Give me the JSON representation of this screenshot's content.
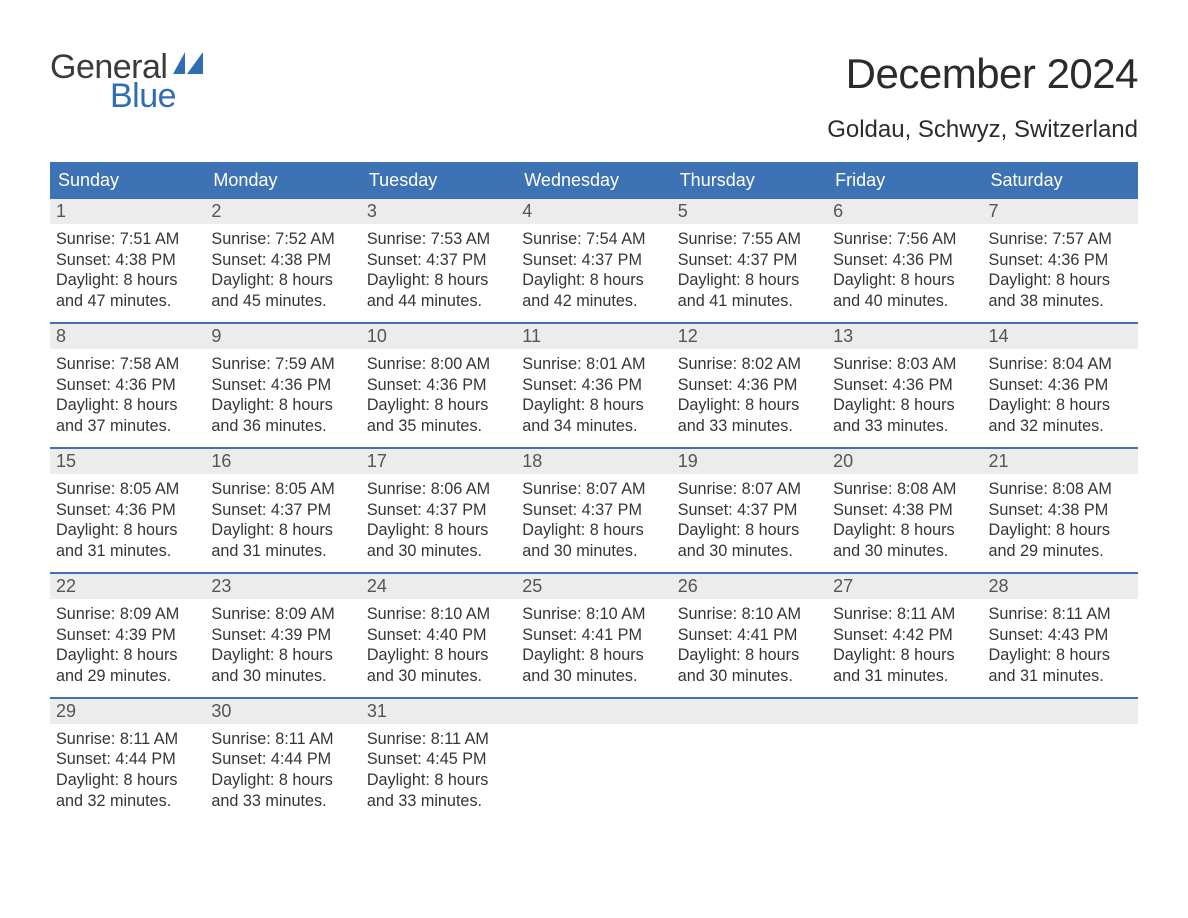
{
  "colors": {
    "header_bg": "#3d72b4",
    "header_text": "#ffffff",
    "row_border": "#3d72b4",
    "daynum_bg": "#ececec",
    "daynum_text": "#555555",
    "body_text": "#353535",
    "page_bg": "#ffffff",
    "logo_dark": "#3b3b3b",
    "logo_blue": "#2f6eb1"
  },
  "logo": {
    "word1": "General",
    "word2": "Blue"
  },
  "title": "December 2024",
  "location": "Goldau, Schwyz, Switzerland",
  "weekdays": [
    "Sunday",
    "Monday",
    "Tuesday",
    "Wednesday",
    "Thursday",
    "Friday",
    "Saturday"
  ],
  "labels": {
    "sunrise": "Sunrise:",
    "sunset": "Sunset:",
    "daylight": "Daylight:"
  },
  "weeks": [
    [
      {
        "n": "1",
        "sunrise": "7:51 AM",
        "sunset": "4:38 PM",
        "day_h": "8",
        "day_m": "47"
      },
      {
        "n": "2",
        "sunrise": "7:52 AM",
        "sunset": "4:38 PM",
        "day_h": "8",
        "day_m": "45"
      },
      {
        "n": "3",
        "sunrise": "7:53 AM",
        "sunset": "4:37 PM",
        "day_h": "8",
        "day_m": "44"
      },
      {
        "n": "4",
        "sunrise": "7:54 AM",
        "sunset": "4:37 PM",
        "day_h": "8",
        "day_m": "42"
      },
      {
        "n": "5",
        "sunrise": "7:55 AM",
        "sunset": "4:37 PM",
        "day_h": "8",
        "day_m": "41"
      },
      {
        "n": "6",
        "sunrise": "7:56 AM",
        "sunset": "4:36 PM",
        "day_h": "8",
        "day_m": "40"
      },
      {
        "n": "7",
        "sunrise": "7:57 AM",
        "sunset": "4:36 PM",
        "day_h": "8",
        "day_m": "38"
      }
    ],
    [
      {
        "n": "8",
        "sunrise": "7:58 AM",
        "sunset": "4:36 PM",
        "day_h": "8",
        "day_m": "37"
      },
      {
        "n": "9",
        "sunrise": "7:59 AM",
        "sunset": "4:36 PM",
        "day_h": "8",
        "day_m": "36"
      },
      {
        "n": "10",
        "sunrise": "8:00 AM",
        "sunset": "4:36 PM",
        "day_h": "8",
        "day_m": "35"
      },
      {
        "n": "11",
        "sunrise": "8:01 AM",
        "sunset": "4:36 PM",
        "day_h": "8",
        "day_m": "34"
      },
      {
        "n": "12",
        "sunrise": "8:02 AM",
        "sunset": "4:36 PM",
        "day_h": "8",
        "day_m": "33"
      },
      {
        "n": "13",
        "sunrise": "8:03 AM",
        "sunset": "4:36 PM",
        "day_h": "8",
        "day_m": "33"
      },
      {
        "n": "14",
        "sunrise": "8:04 AM",
        "sunset": "4:36 PM",
        "day_h": "8",
        "day_m": "32"
      }
    ],
    [
      {
        "n": "15",
        "sunrise": "8:05 AM",
        "sunset": "4:36 PM",
        "day_h": "8",
        "day_m": "31"
      },
      {
        "n": "16",
        "sunrise": "8:05 AM",
        "sunset": "4:37 PM",
        "day_h": "8",
        "day_m": "31"
      },
      {
        "n": "17",
        "sunrise": "8:06 AM",
        "sunset": "4:37 PM",
        "day_h": "8",
        "day_m": "30"
      },
      {
        "n": "18",
        "sunrise": "8:07 AM",
        "sunset": "4:37 PM",
        "day_h": "8",
        "day_m": "30"
      },
      {
        "n": "19",
        "sunrise": "8:07 AM",
        "sunset": "4:37 PM",
        "day_h": "8",
        "day_m": "30"
      },
      {
        "n": "20",
        "sunrise": "8:08 AM",
        "sunset": "4:38 PM",
        "day_h": "8",
        "day_m": "30"
      },
      {
        "n": "21",
        "sunrise": "8:08 AM",
        "sunset": "4:38 PM",
        "day_h": "8",
        "day_m": "29"
      }
    ],
    [
      {
        "n": "22",
        "sunrise": "8:09 AM",
        "sunset": "4:39 PM",
        "day_h": "8",
        "day_m": "29"
      },
      {
        "n": "23",
        "sunrise": "8:09 AM",
        "sunset": "4:39 PM",
        "day_h": "8",
        "day_m": "30"
      },
      {
        "n": "24",
        "sunrise": "8:10 AM",
        "sunset": "4:40 PM",
        "day_h": "8",
        "day_m": "30"
      },
      {
        "n": "25",
        "sunrise": "8:10 AM",
        "sunset": "4:41 PM",
        "day_h": "8",
        "day_m": "30"
      },
      {
        "n": "26",
        "sunrise": "8:10 AM",
        "sunset": "4:41 PM",
        "day_h": "8",
        "day_m": "30"
      },
      {
        "n": "27",
        "sunrise": "8:11 AM",
        "sunset": "4:42 PM",
        "day_h": "8",
        "day_m": "31"
      },
      {
        "n": "28",
        "sunrise": "8:11 AM",
        "sunset": "4:43 PM",
        "day_h": "8",
        "day_m": "31"
      }
    ],
    [
      {
        "n": "29",
        "sunrise": "8:11 AM",
        "sunset": "4:44 PM",
        "day_h": "8",
        "day_m": "32"
      },
      {
        "n": "30",
        "sunrise": "8:11 AM",
        "sunset": "4:44 PM",
        "day_h": "8",
        "day_m": "33"
      },
      {
        "n": "31",
        "sunrise": "8:11 AM",
        "sunset": "4:45 PM",
        "day_h": "8",
        "day_m": "33"
      },
      {
        "empty": true
      },
      {
        "empty": true
      },
      {
        "empty": true
      },
      {
        "empty": true
      }
    ]
  ]
}
